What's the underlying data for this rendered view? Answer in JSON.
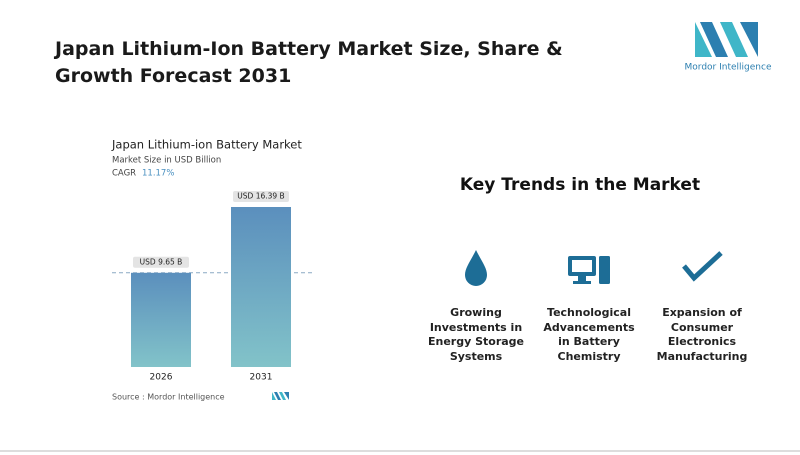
{
  "header": {
    "title": "Japan Lithium-Ion Battery Market Size, Share & Growth Forecast 2031"
  },
  "logo": {
    "text": "Mordor Intelligence"
  },
  "chart_data": {
    "type": "bar",
    "title": "Japan Lithium-ion Battery Market",
    "subtitle": "Market Size in USD Billion",
    "cagr_label": "CAGR",
    "cagr_value": "11.17%",
    "categories": [
      "2026",
      "2031"
    ],
    "values": [
      9.65,
      16.39
    ],
    "value_labels": [
      "USD 9.65 B",
      "USD 16.39 B"
    ],
    "source": "Source : Mordor Intelligence"
  },
  "trends": {
    "title": "Key Trends in the Market",
    "items": [
      "Growing Investments in Energy Storage Systems",
      "Technological Advancements in Battery Chemistry",
      "Expansion of Consumer Electronics Manufacturing"
    ]
  }
}
